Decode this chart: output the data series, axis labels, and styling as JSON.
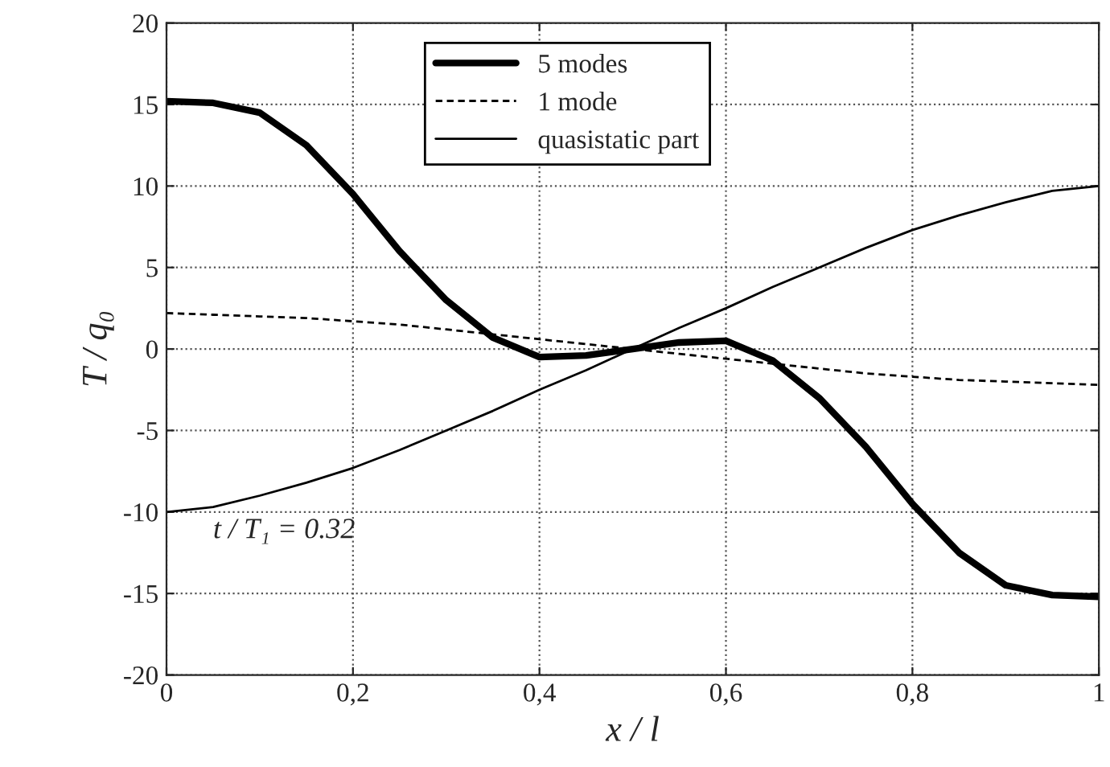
{
  "chart_data": {
    "type": "line",
    "xlabel": "x / l",
    "ylabel": "T / q₀",
    "x": [
      0,
      0.05,
      0.1,
      0.15,
      0.2,
      0.25,
      0.3,
      0.35,
      0.4,
      0.45,
      0.5,
      0.55,
      0.6,
      0.65,
      0.7,
      0.75,
      0.8,
      0.85,
      0.9,
      0.95,
      1
    ],
    "series": [
      {
        "name": "5 modes",
        "color": "#000000",
        "line_style": "solid",
        "values": [
          15.2,
          15.1,
          14.5,
          12.5,
          9.5,
          6,
          3,
          0.7,
          -0.5,
          -0.4,
          0,
          0.4,
          0.5,
          -0.7,
          -3,
          -6,
          -9.5,
          -12.5,
          -14.5,
          -15.1,
          -15.2
        ]
      },
      {
        "name": "1 mode",
        "color": "#000000",
        "line_style": "dashed",
        "values": [
          2.2,
          2.1,
          2,
          1.9,
          1.7,
          1.5,
          1.2,
          0.9,
          0.6,
          0.3,
          0,
          -0.3,
          -0.6,
          -0.9,
          -1.2,
          -1.5,
          -1.7,
          -1.9,
          -2,
          -2.1,
          -2.2
        ]
      },
      {
        "name": "quasistatic part",
        "color": "#000000",
        "line_style": "solid",
        "values": [
          -10,
          -9.7,
          -9,
          -8.2,
          -7.3,
          -6.2,
          -5,
          -3.8,
          -2.5,
          -1.3,
          0,
          1.3,
          2.5,
          3.8,
          5,
          6.2,
          7.3,
          8.2,
          9,
          9.7,
          10
        ]
      }
    ],
    "xlim": [
      0,
      1
    ],
    "ylim": [
      -20,
      20
    ],
    "xticks": [
      {
        "value": 0,
        "label": "0"
      },
      {
        "value": 0.2,
        "label": "0,2"
      },
      {
        "value": 0.4,
        "label": "0,4"
      },
      {
        "value": 0.6,
        "label": "0,6"
      },
      {
        "value": 0.8,
        "label": "0,8"
      },
      {
        "value": 1,
        "label": "1"
      }
    ],
    "yticks": [
      -20,
      -15,
      -10,
      -5,
      0,
      5,
      10,
      15,
      20
    ],
    "grid": true,
    "legend": "top",
    "marker": "none",
    "annotations": [
      "t / T₁ = 0.32"
    ]
  }
}
